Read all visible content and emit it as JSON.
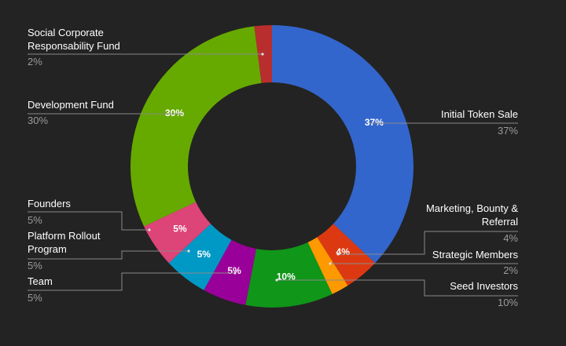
{
  "chart_data": {
    "type": "pie",
    "style": "donut",
    "slices": [
      {
        "label": "Initial Token Sale",
        "value": 37,
        "pct_text": "37%",
        "slice_text": "37%",
        "color": "#3366cc"
      },
      {
        "label": "Marketing, Bounty & Referral",
        "value": 4,
        "pct_text": "4%",
        "slice_text": "4%",
        "color": "#dc3912"
      },
      {
        "label": "Strategic Members",
        "value": 2,
        "pct_text": "2%",
        "slice_text": "",
        "color": "#ff9900"
      },
      {
        "label": "Seed Investors",
        "value": 10,
        "pct_text": "10%",
        "slice_text": "10%",
        "color": "#109618"
      },
      {
        "label": "Team",
        "value": 5,
        "pct_text": "5%",
        "slice_text": "5%",
        "color": "#990099"
      },
      {
        "label": "Platform Rollout Program",
        "value": 5,
        "pct_text": "5%",
        "slice_text": "5%",
        "color": "#0099c6"
      },
      {
        "label": "Founders",
        "value": 5,
        "pct_text": "5%",
        "slice_text": "5%",
        "color": "#dd4477"
      },
      {
        "label": "Development Fund",
        "value": 30,
        "pct_text": "30%",
        "slice_text": "30%",
        "color": "#66aa00"
      },
      {
        "label": "Social Corporate Responsability Fund",
        "value": 2,
        "pct_text": "2%",
        "slice_text": "",
        "color": "#b82e2e"
      }
    ],
    "legend": "labeled",
    "background": "#232323"
  }
}
